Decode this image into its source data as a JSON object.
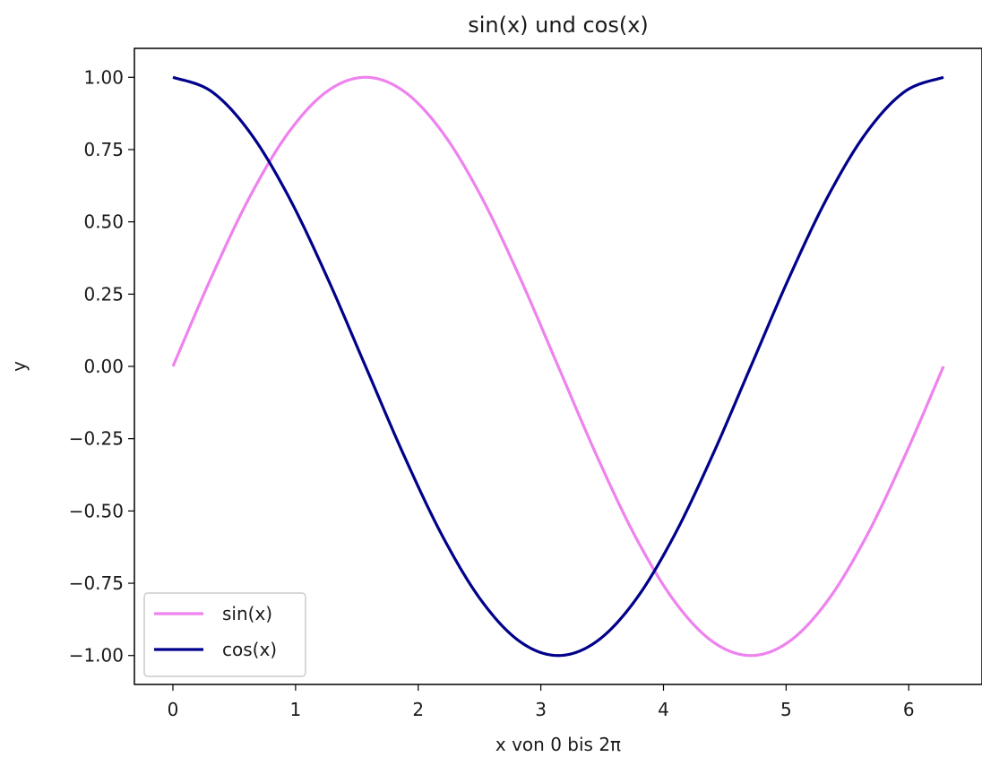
{
  "chart_data": {
    "type": "line",
    "title": "sin(x) und cos(x)",
    "xlabel": "x von 0 bis 2π",
    "ylabel": "y",
    "xlim": [
      -0.3142,
      6.5973
    ],
    "ylim": [
      -1.1,
      1.1
    ],
    "x_ticks": [
      0,
      1,
      2,
      3,
      4,
      5,
      6
    ],
    "x_tick_labels": [
      "0",
      "1",
      "2",
      "3",
      "4",
      "5",
      "6"
    ],
    "y_ticks": [
      1.0,
      0.75,
      0.5,
      0.25,
      0.0,
      -0.25,
      -0.5,
      -0.75,
      -1.0
    ],
    "y_tick_labels": [
      "1.00",
      "0.75",
      "0.50",
      "0.25",
      "0.00",
      "−0.25",
      "−0.50",
      "−0.75",
      "−1.00"
    ],
    "x": [
      0.0,
      0.3142,
      0.6283,
      0.9425,
      1.2566,
      1.5708,
      1.885,
      2.1991,
      2.5133,
      2.8274,
      3.1416,
      3.4558,
      3.7699,
      4.0841,
      4.3982,
      4.7124,
      5.0265,
      5.3407,
      5.6549,
      5.969,
      6.2832
    ],
    "series": [
      {
        "name": "sin(x)",
        "color": "#ee82ee",
        "values": [
          0.0,
          0.309,
          0.5878,
          0.809,
          0.9511,
          1.0,
          0.9511,
          0.809,
          0.5878,
          0.309,
          0.0,
          -0.309,
          -0.5878,
          -0.809,
          -0.9511,
          -1.0,
          -0.9511,
          -0.809,
          -0.5878,
          -0.309,
          0.0
        ]
      },
      {
        "name": "cos(x)",
        "color": "#00008b",
        "values": [
          1.0,
          0.9511,
          0.809,
          0.5878,
          0.309,
          0.0,
          -0.309,
          -0.5878,
          -0.809,
          -0.9511,
          -1.0,
          -0.9511,
          -0.809,
          -0.5878,
          -0.309,
          0.0,
          0.309,
          0.5878,
          0.809,
          0.9511,
          1.0
        ]
      }
    ],
    "grid": false,
    "legend": {
      "position": "lower-left",
      "entries": [
        "sin(x)",
        "cos(x)"
      ]
    }
  }
}
